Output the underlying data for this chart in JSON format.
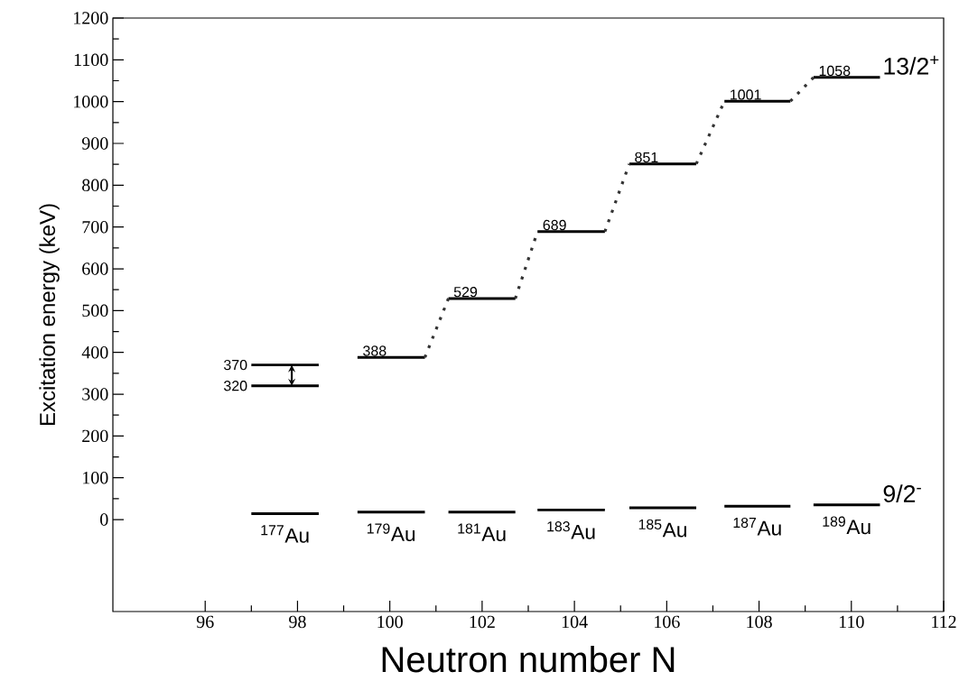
{
  "chart_data": {
    "type": "line",
    "xlabel": "Neutron number N",
    "ylabel": "Excitation energy (keV)",
    "xlim": [
      94,
      112
    ],
    "xticks": [
      96,
      98,
      100,
      102,
      104,
      106,
      108,
      110,
      112
    ],
    "ylim": [
      -220,
      1200
    ],
    "yticks": [
      0,
      100,
      200,
      300,
      400,
      500,
      600,
      700,
      800,
      900,
      1000,
      1100,
      1200
    ],
    "grid": false,
    "marker": "none",
    "series": [
      {
        "color": "#000000",
        "line_style": "solid",
        "x": [
          97.0,
          98.46
        ],
        "values": [
          320,
          320
        ],
        "value_labels": [
          "320",
          null
        ]
      },
      {
        "color": "#000000",
        "line_style": "solid",
        "x": [
          97.0,
          98.46
        ],
        "values": [
          370,
          370
        ],
        "value_labels": [
          "370",
          null
        ]
      },
      {
        "name": "13/2$^{+}$",
        "color": "#000000",
        "line_style": "solid",
        "x": [
          99.3,
          100.76,
          101.0,
          101.27,
          102.72,
          103.0,
          103.2,
          104.66,
          104.9,
          105.19,
          106.64,
          106.9,
          107.25,
          108.68,
          108.9,
          109.18,
          110.62
        ],
        "values": [
          388,
          388,
          null,
          529,
          529,
          null,
          689,
          689,
          null,
          851,
          851,
          null,
          1001,
          1001,
          null,
          1058,
          1058
        ],
        "value_labels": [
          "388",
          null,
          null,
          "529",
          null,
          null,
          "689",
          null,
          null,
          "851",
          null,
          null,
          "1001",
          null,
          null,
          "1058",
          null
        ]
      },
      {
        "color": "#333333",
        "line_style": "dotted",
        "x": [
          100.76,
          101.27,
          102.0,
          102.72,
          103.2,
          104.0,
          104.66,
          105.19,
          106.0,
          106.64,
          107.25,
          108.0,
          108.68,
          109.18
        ],
        "values": [
          388,
          529,
          null,
          529,
          689,
          null,
          689,
          851,
          null,
          851,
          1001,
          null,
          1001,
          1058
        ]
      },
      {
        "name": "9/2$^{-}$",
        "color": "#000000",
        "line_style": "solid",
        "x": [
          97.0,
          98.46,
          98.9,
          99.3,
          100.76,
          101.0,
          101.27,
          102.72,
          103.0,
          103.2,
          104.66,
          104.9,
          105.19,
          106.64,
          106.9,
          107.25,
          108.68,
          108.9,
          109.18,
          110.62
        ],
        "values": [
          14,
          14,
          null,
          18,
          18,
          null,
          18,
          18,
          null,
          23,
          23,
          null,
          28,
          28,
          null,
          32,
          32,
          null,
          35,
          35
        ]
      }
    ],
    "annotations": [
      "$^{177}$Au",
      "$^{179}$Au",
      "$^{181}$Au",
      "$^{183}$Au",
      "$^{185}$Au",
      "$^{187}$Au",
      "$^{189}$Au"
    ]
  }
}
